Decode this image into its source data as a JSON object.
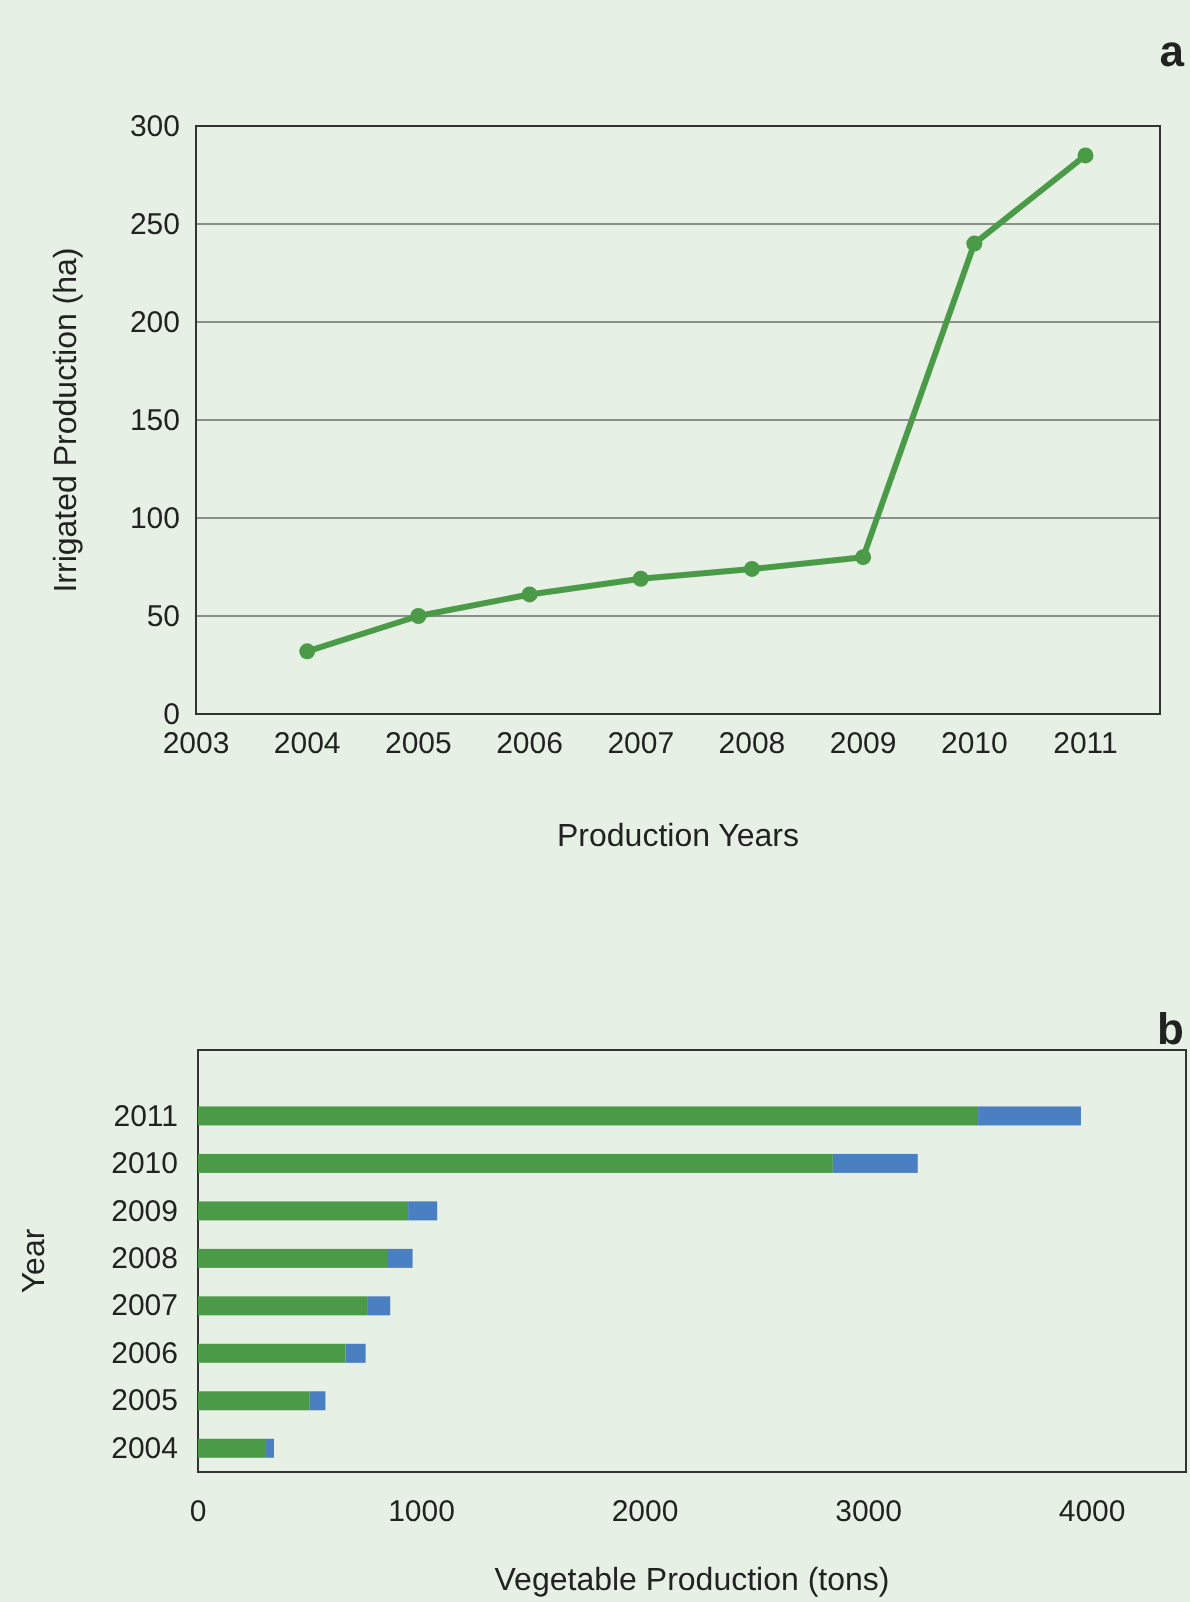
{
  "chart_data": [
    {
      "type": "line",
      "title": "a",
      "xlabel": "Production Years",
      "ylabel": "Irrigated Production (ha)",
      "x": [
        2004,
        2005,
        2006,
        2007,
        2008,
        2009,
        2010,
        2011
      ],
      "series": [
        {
          "color": "#4a9a47",
          "values": [
            32,
            50,
            61,
            69,
            74,
            80,
            240,
            285
          ]
        }
      ],
      "xlim": [
        2003,
        2011.67
      ],
      "xticks": [
        2003,
        2004,
        2005,
        2006,
        2007,
        2008,
        2009,
        2010,
        2011
      ],
      "ylim": [
        0,
        300
      ],
      "yticks": [
        0,
        50,
        100,
        150,
        200,
        250,
        300
      ],
      "grid": "y",
      "marker": "circle",
      "line_style": "solid"
    },
    {
      "type": "bar",
      "title": "b",
      "xlabel": "Vegetable Production (tons)",
      "ylabel": "Year",
      "orientation": "horizontal",
      "stacked": true,
      "categories": [
        "2011",
        "2010",
        "2009",
        "2008",
        "2007",
        "2006",
        "2005",
        "2004"
      ],
      "series": [
        {
          "color": "#4a9a47",
          "values": [
            3490,
            2840,
            940,
            850,
            760,
            660,
            500,
            300
          ]
        },
        {
          "color": "#4a7fc1",
          "values": [
            460,
            380,
            130,
            110,
            100,
            90,
            70,
            40
          ]
        }
      ],
      "xlim": [
        0,
        4420
      ],
      "xticks": [
        0,
        1000,
        2000,
        3000,
        4000
      ]
    }
  ]
}
